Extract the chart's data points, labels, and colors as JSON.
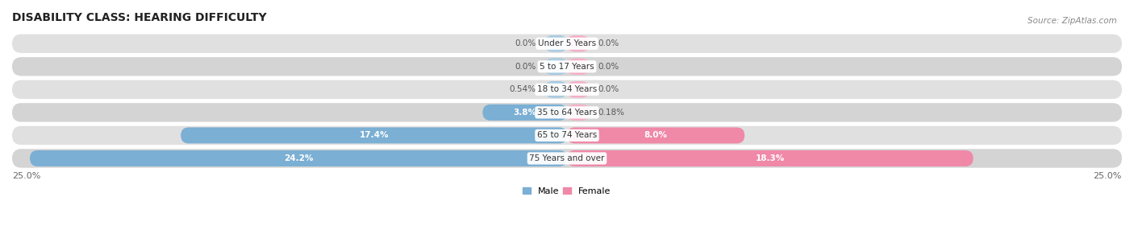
{
  "title": "DISABILITY CLASS: HEARING DIFFICULTY",
  "source": "Source: ZipAtlas.com",
  "categories": [
    "Under 5 Years",
    "5 to 17 Years",
    "18 to 34 Years",
    "35 to 64 Years",
    "65 to 74 Years",
    "75 Years and over"
  ],
  "male_values": [
    0.0,
    0.0,
    0.54,
    3.8,
    17.4,
    24.2
  ],
  "female_values": [
    0.0,
    0.0,
    0.0,
    0.18,
    8.0,
    18.3
  ],
  "male_labels": [
    "0.0%",
    "0.0%",
    "0.54%",
    "3.8%",
    "17.4%",
    "24.2%"
  ],
  "female_labels": [
    "0.0%",
    "0.0%",
    "0.0%",
    "0.18%",
    "8.0%",
    "18.3%"
  ],
  "male_color": "#7bafd4",
  "female_color": "#f088a8",
  "male_color_light": "#a8cce0",
  "female_color_light": "#f4b8cc",
  "male_label": "Male",
  "female_label": "Female",
  "axis_max": 25.0,
  "row_bg_color_odd": "#e8e8e8",
  "row_bg_color_even": "#d8d8d8",
  "title_fontsize": 10,
  "source_fontsize": 7.5,
  "label_fontsize": 8,
  "category_fontsize": 7.5,
  "value_fontsize": 7.5,
  "axis_label_fontsize": 8,
  "background_color": "#ffffff",
  "stub_min": 1.0
}
